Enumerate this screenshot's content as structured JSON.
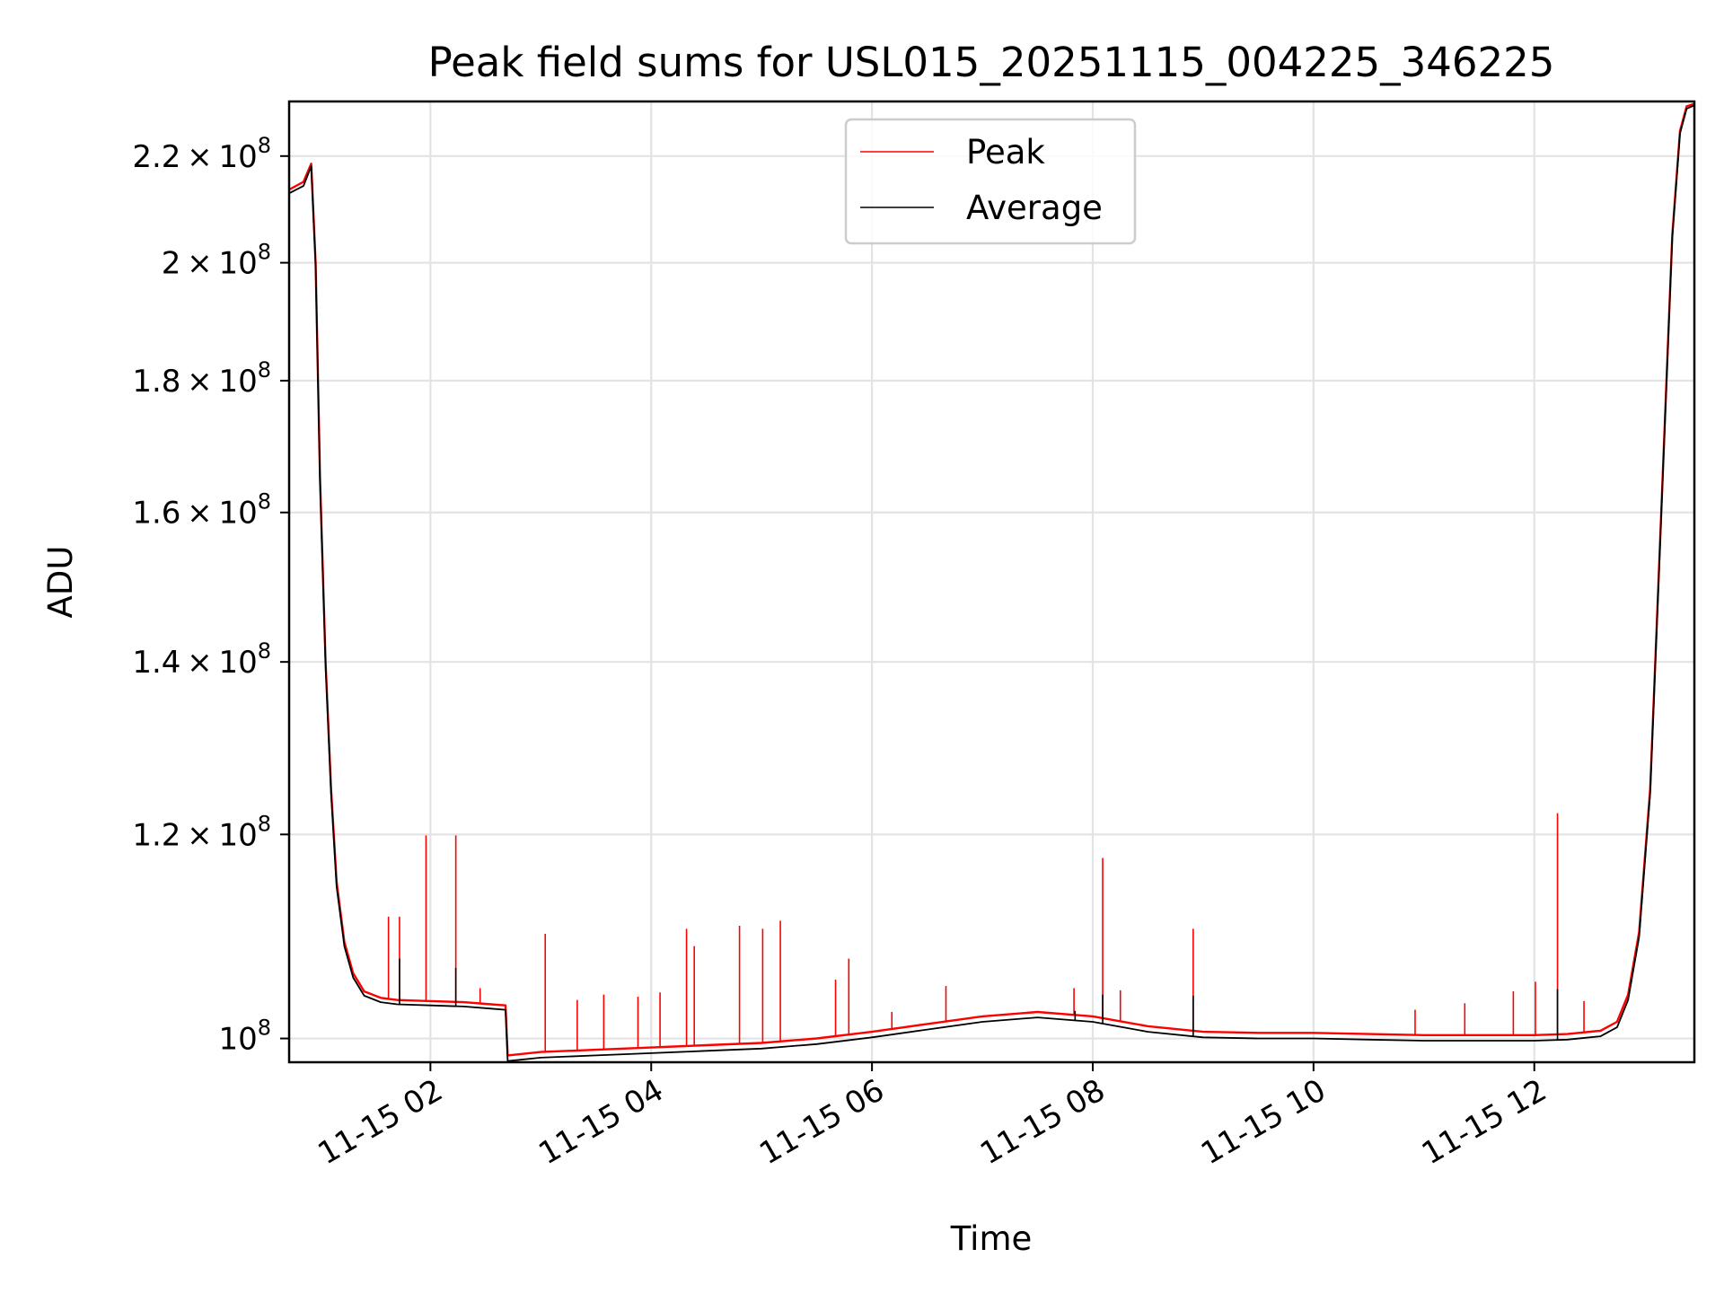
{
  "chart_data": {
    "type": "line",
    "title": "Peak field sums for USL015_20251115_004225_346225",
    "xlabel": "Time",
    "ylabel": "ADU",
    "yscale": "log",
    "grid": true,
    "legend_location": "upper center",
    "x_unit": "hours since 2025-11-15 00:00",
    "xlim": [
      0.72,
      13.45
    ],
    "ylim": [
      97900000,
      231000000
    ],
    "x_tick_values": [
      2,
      4,
      6,
      8,
      10,
      12
    ],
    "x_tick_labels": [
      "11-15 02",
      "11-15 04",
      "11-15 06",
      "11-15 08",
      "11-15 10",
      "11-15 12"
    ],
    "y_ticks": [
      {
        "value": 100000000,
        "mantissa": "",
        "base": "10",
        "exponent": "8"
      },
      {
        "value": 120000000,
        "mantissa": "1.2",
        "base": "10",
        "exponent": "8"
      },
      {
        "value": 140000000,
        "mantissa": "1.4",
        "base": "10",
        "exponent": "8"
      },
      {
        "value": 160000000,
        "mantissa": "1.6",
        "base": "10",
        "exponent": "8"
      },
      {
        "value": 180000000,
        "mantissa": "1.8",
        "base": "10",
        "exponent": "8"
      },
      {
        "value": 200000000,
        "mantissa": "2",
        "base": "10",
        "exponent": "8"
      },
      {
        "value": 220000000,
        "mantissa": "2.2",
        "base": "10",
        "exponent": "8"
      }
    ],
    "series": [
      {
        "name": "Peak",
        "color": "#ff0000",
        "x": [
          0.72,
          0.85,
          0.92,
          0.96,
          1.0,
          1.05,
          1.1,
          1.15,
          1.22,
          1.3,
          1.4,
          1.55,
          1.7,
          2.0,
          2.3,
          2.55,
          2.68,
          2.7,
          3.0,
          3.5,
          4.0,
          4.5,
          5.0,
          5.5,
          6.0,
          6.5,
          7.0,
          7.5,
          8.0,
          8.5,
          9.0,
          9.5,
          10.0,
          10.5,
          11.0,
          11.5,
          12.0,
          12.3,
          12.6,
          12.75,
          12.85,
          12.95,
          13.05,
          13.15,
          13.25,
          13.32,
          13.38,
          13.45
        ],
        "y": [
          213500000,
          215000000,
          218500000,
          200000000,
          165000000,
          140000000,
          125000000,
          115000000,
          109000000,
          106000000,
          104300000,
          103700000,
          103500000,
          103400000,
          103300000,
          103100000,
          103000000,
          98500000,
          98800000,
          99000000,
          99200000,
          99400000,
          99600000,
          100000000,
          100600000,
          101300000,
          102000000,
          102400000,
          102000000,
          101100000,
          100600000,
          100500000,
          100500000,
          100400000,
          100300000,
          100300000,
          100300000,
          100400000,
          100700000,
          101500000,
          104000000,
          110000000,
          125000000,
          160000000,
          205000000,
          225000000,
          230000000,
          230500000
        ]
      },
      {
        "name": "Average",
        "color": "#000000",
        "x": [
          0.72,
          0.85,
          0.92,
          0.96,
          1.0,
          1.05,
          1.1,
          1.15,
          1.22,
          1.3,
          1.4,
          1.55,
          1.7,
          2.0,
          2.3,
          2.55,
          2.68,
          2.7,
          3.0,
          3.5,
          4.0,
          4.5,
          5.0,
          5.5,
          6.0,
          6.5,
          7.0,
          7.5,
          8.0,
          8.5,
          9.0,
          9.5,
          10.0,
          10.5,
          11.0,
          11.5,
          12.0,
          12.3,
          12.6,
          12.75,
          12.85,
          12.95,
          13.05,
          13.15,
          13.25,
          13.32,
          13.38,
          13.45
        ],
        "y": [
          212800000,
          214200000,
          218000000,
          199500000,
          164500000,
          139500000,
          124500000,
          114500000,
          108600000,
          105600000,
          103900000,
          103300000,
          103100000,
          103000000,
          102900000,
          102700000,
          102600000,
          98000000,
          98300000,
          98500000,
          98700000,
          98900000,
          99100000,
          99500000,
          100100000,
          100800000,
          101500000,
          101900000,
          101500000,
          100600000,
          100100000,
          100000000,
          100000000,
          99900000,
          99800000,
          99800000,
          99800000,
          99900000,
          100200000,
          101000000,
          103500000,
          109500000,
          124500000,
          159500000,
          204500000,
          224500000,
          229500000,
          230200000
        ]
      }
    ],
    "peak_spikes": {
      "x": [
        1.62,
        1.72,
        1.96,
        2.23,
        2.45,
        3.04,
        3.33,
        3.57,
        3.88,
        4.08,
        4.32,
        4.39,
        4.8,
        5.01,
        5.17,
        5.67,
        5.79,
        6.18,
        6.67,
        7.83,
        8.09,
        8.25,
        8.91,
        10.92,
        11.37,
        11.81,
        12.01,
        12.21,
        12.45
      ],
      "y": [
        111500000,
        111500000,
        119900000,
        119900000,
        104600000,
        109800000,
        103500000,
        104000000,
        103800000,
        104200000,
        110300000,
        108600000,
        110600000,
        110300000,
        111100000,
        105400000,
        107400000,
        102400000,
        104800000,
        104600000,
        117500000,
        104400000,
        110300000,
        102600000,
        103200000,
        104300000,
        105200000,
        122300000,
        103400000
      ]
    },
    "average_spikes": {
      "x": [
        1.72,
        2.23,
        7.84,
        8.09,
        8.91,
        12.21
      ],
      "y": [
        107400000,
        106500000,
        102500000,
        104000000,
        103900000,
        104500000
      ]
    }
  }
}
